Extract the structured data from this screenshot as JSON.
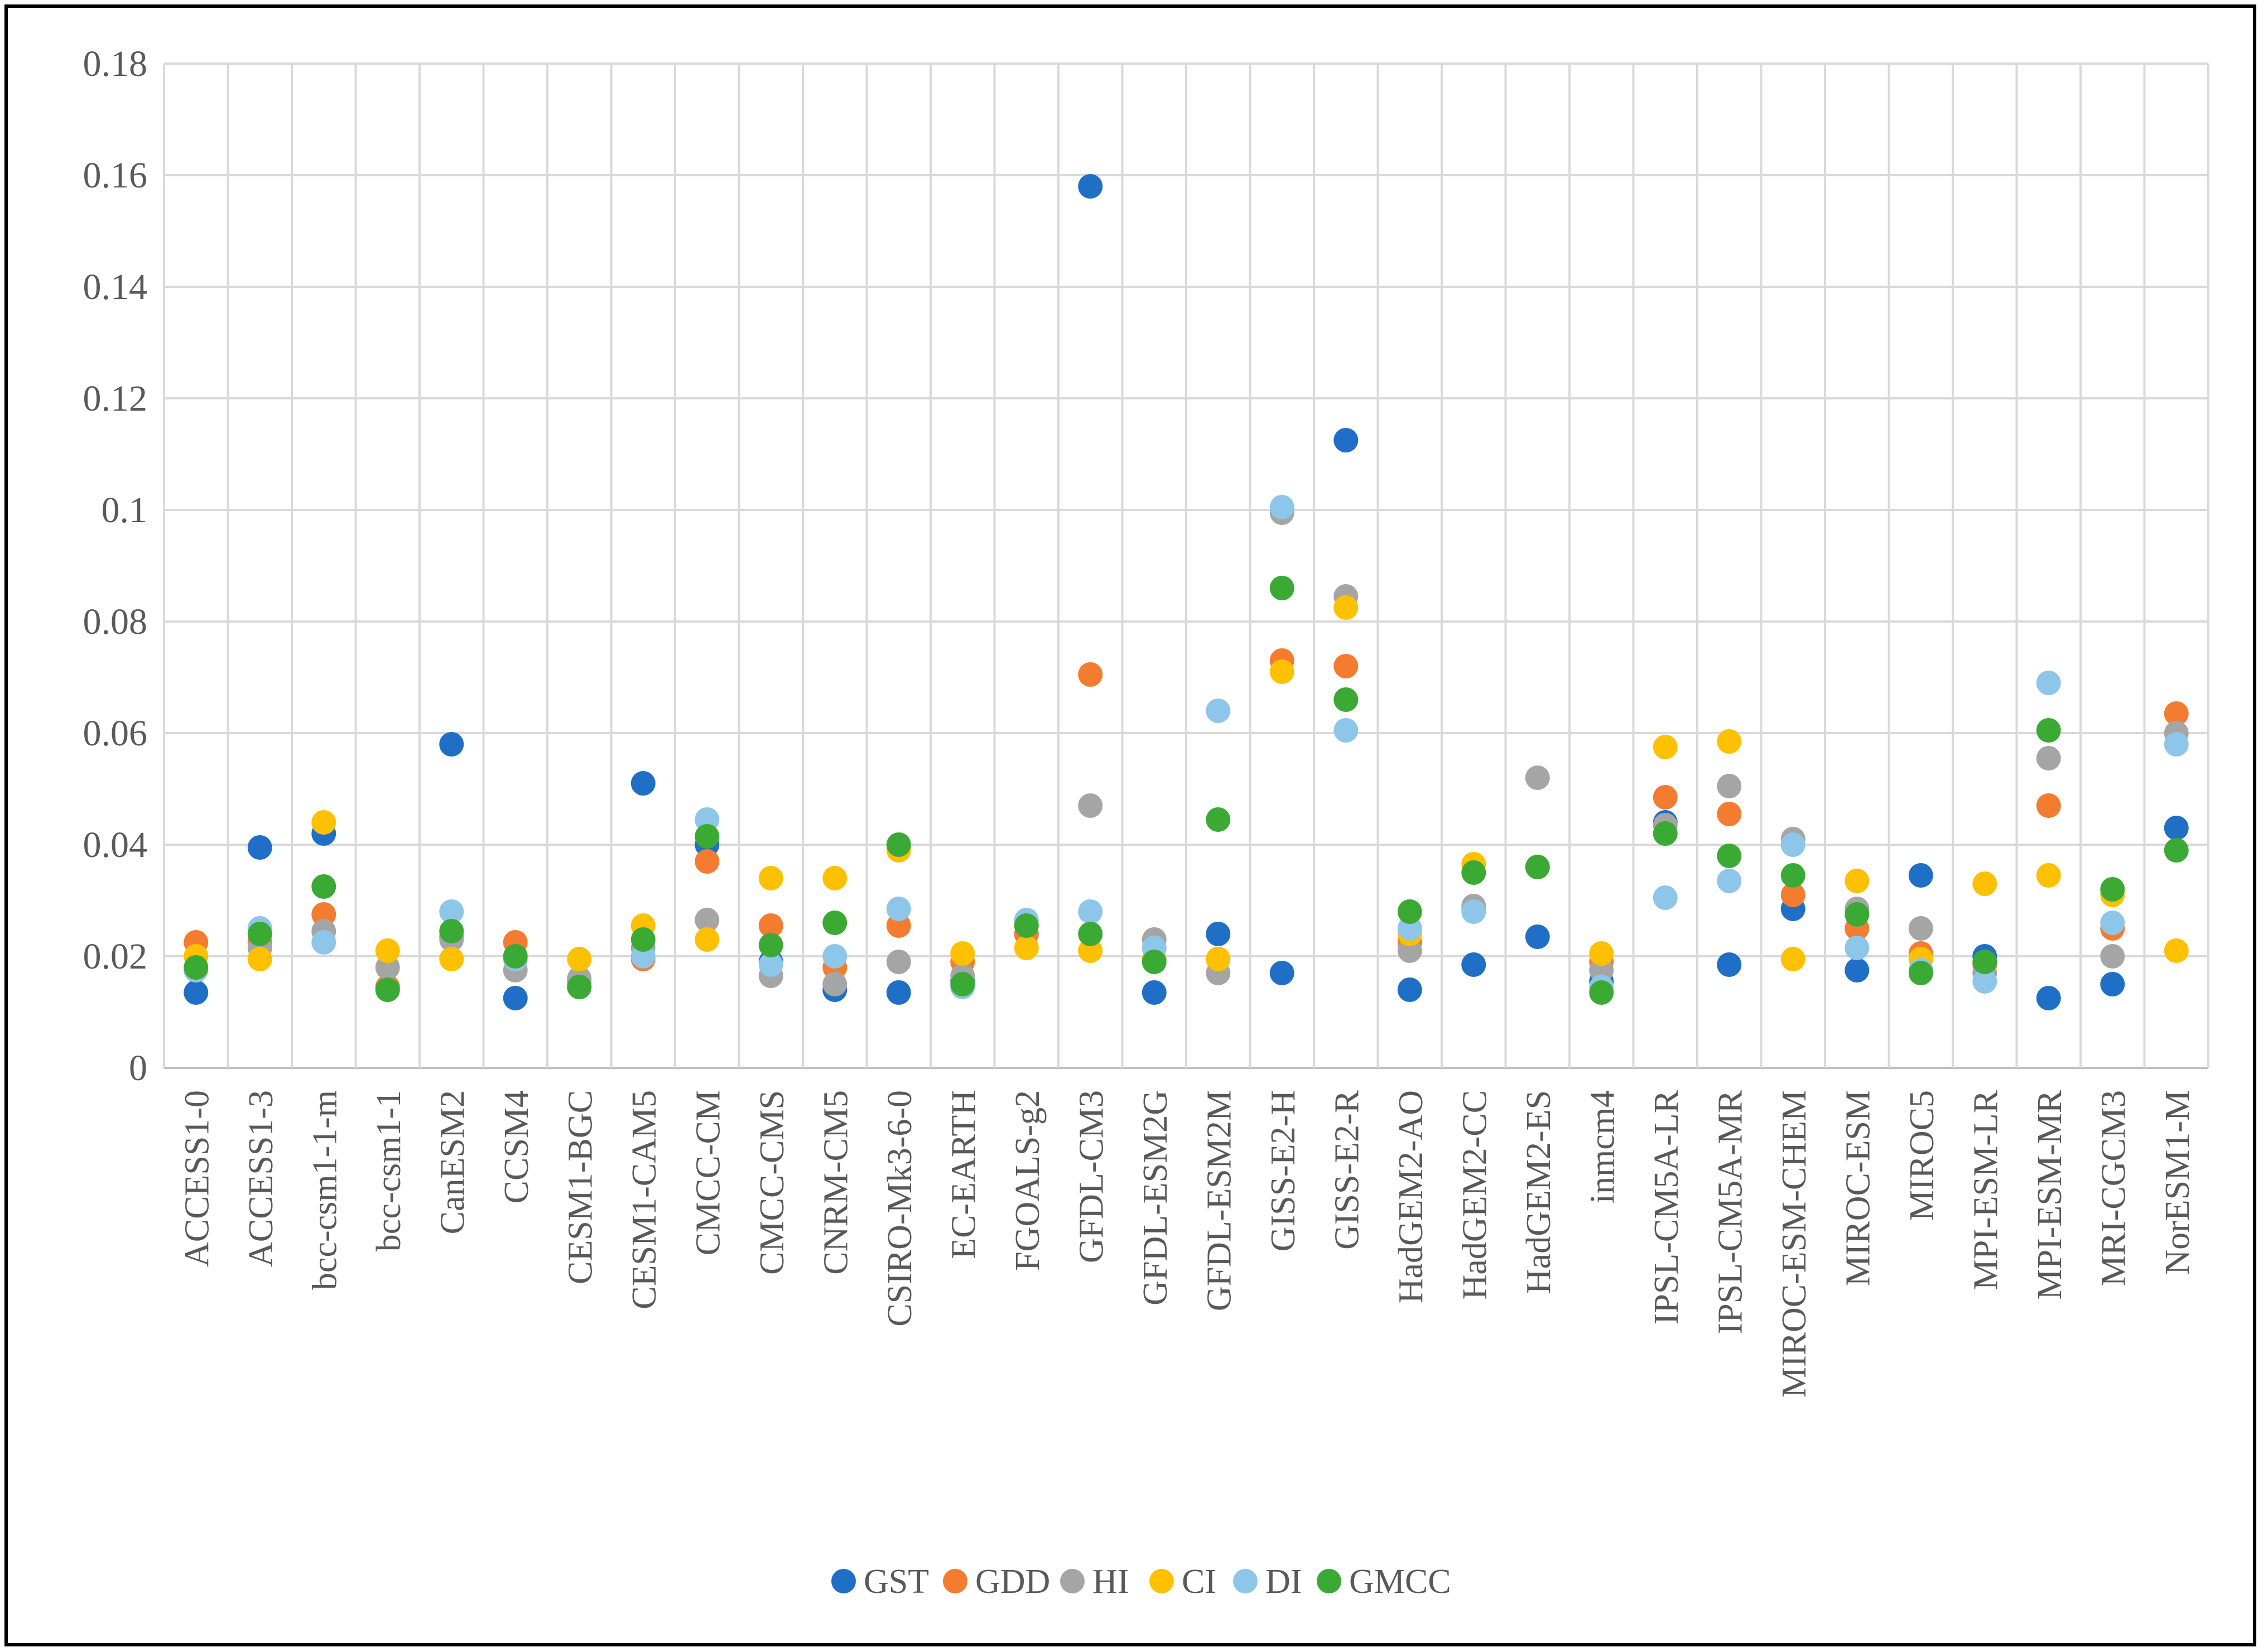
{
  "chart_data": {
    "type": "scatter",
    "title": "",
    "xlabel": "",
    "ylabel": "",
    "ylim": [
      0,
      0.18
    ],
    "yticks": [
      "0",
      "0.02",
      "0.04",
      "0.06",
      "0.08",
      "0.1",
      "0.12",
      "0.14",
      "0.16",
      "0.18"
    ],
    "legend_position": "bottom",
    "categories": [
      "ACCESS1-0",
      "ACCESS1-3",
      "bcc-csm1-1-m",
      "bcc-csm1-1",
      "CanESM2",
      "CCSM4",
      "CESM1-BGC",
      "CESM1-CAM5",
      "CMCC-CM",
      "CMCC-CMS",
      "CNRM-CM5",
      "CSIRO-Mk3-6-0",
      "EC-EARTH",
      "FGOALS-g2",
      "GFDL-CM3",
      "GFDL-ESM2G",
      "GFDL-ESM2M",
      "GISS-E2-H",
      "GISS-E2-R",
      "HadGEM2-AO",
      "HadGEM2-CC",
      "HadGEM2-ES",
      "inmcm4",
      "IPSL-CM5A-LR",
      "IPSL-CM5A-MR",
      "MIROC-ESM-CHEM",
      "MIROC-ESM",
      "MIROC5",
      "MPI-ESM-LR",
      "MPI-ESM-MR",
      "MRI-CGCM3",
      "NorESM1-M"
    ],
    "series": [
      {
        "name": "GST",
        "color": "#1f6fc6",
        "values": [
          0.0135,
          0.0395,
          0.042,
          0.0145,
          0.058,
          0.0125,
          0.0145,
          0.051,
          0.04,
          0.019,
          0.014,
          0.0135,
          0.0155,
          0.024,
          0.158,
          0.0135,
          0.024,
          0.017,
          0.1125,
          0.014,
          0.0185,
          0.0235,
          0.0155,
          0.044,
          0.0185,
          0.0285,
          0.0175,
          0.0345,
          0.02,
          0.0125,
          0.015,
          0.043
        ]
      },
      {
        "name": "GDD",
        "color": "#f47c30",
        "values": [
          0.0225,
          0.0225,
          0.0275,
          0.0145,
          0.0235,
          0.0225,
          0.0155,
          0.0195,
          0.037,
          0.0255,
          0.018,
          0.0255,
          0.019,
          0.024,
          0.0705,
          0.0215,
          0.0195,
          0.073,
          0.072,
          0.0225,
          0.0285,
          0.036,
          0.019,
          0.0485,
          0.0455,
          0.031,
          0.025,
          0.0205,
          0.0185,
          0.047,
          0.025,
          0.0635
        ]
      },
      {
        "name": "HI",
        "color": "#a5a5a5",
        "values": [
          0.0175,
          0.0215,
          0.0245,
          0.018,
          0.023,
          0.0175,
          0.016,
          0.0215,
          0.0265,
          0.0165,
          0.015,
          0.019,
          0.0165,
          0.0255,
          0.047,
          0.023,
          0.017,
          0.0995,
          0.0845,
          0.021,
          0.029,
          0.052,
          0.0175,
          0.0435,
          0.0505,
          0.041,
          0.0285,
          0.025,
          0.017,
          0.0555,
          0.02,
          0.06
        ]
      },
      {
        "name": "CI",
        "color": "#ffc000",
        "values": [
          0.02,
          0.0195,
          0.044,
          0.021,
          0.0195,
          0.0195,
          0.0195,
          0.0255,
          0.023,
          0.034,
          0.034,
          0.039,
          0.0205,
          0.0215,
          0.021,
          0.0195,
          0.0195,
          0.071,
          0.0825,
          0.024,
          0.0365,
          0.036,
          0.0205,
          0.0575,
          0.0585,
          0.0195,
          0.0335,
          0.0195,
          0.033,
          0.0345,
          0.031,
          0.021
        ]
      },
      {
        "name": "DI",
        "color": "#8ec6ea",
        "values": [
          0.0175,
          0.025,
          0.0225,
          0.014,
          0.028,
          0.0195,
          0.0145,
          0.02,
          0.0445,
          0.0185,
          0.02,
          0.0285,
          0.0145,
          0.0265,
          0.028,
          0.0215,
          0.064,
          0.1005,
          0.0605,
          0.025,
          0.028,
          0.036,
          0.0145,
          0.0305,
          0.0335,
          0.04,
          0.0215,
          0.0175,
          0.0155,
          0.069,
          0.026,
          0.058
        ]
      },
      {
        "name": "GMCC",
        "color": "#3aaa35",
        "values": [
          0.018,
          0.024,
          0.0325,
          0.014,
          0.0245,
          0.02,
          0.0145,
          0.023,
          0.0415,
          0.022,
          0.026,
          0.04,
          0.015,
          0.0255,
          0.024,
          0.019,
          0.0445,
          0.086,
          0.066,
          0.028,
          0.035,
          0.036,
          0.0135,
          0.042,
          0.038,
          0.0345,
          0.0275,
          0.017,
          0.019,
          0.0605,
          0.032,
          0.039
        ]
      }
    ]
  }
}
